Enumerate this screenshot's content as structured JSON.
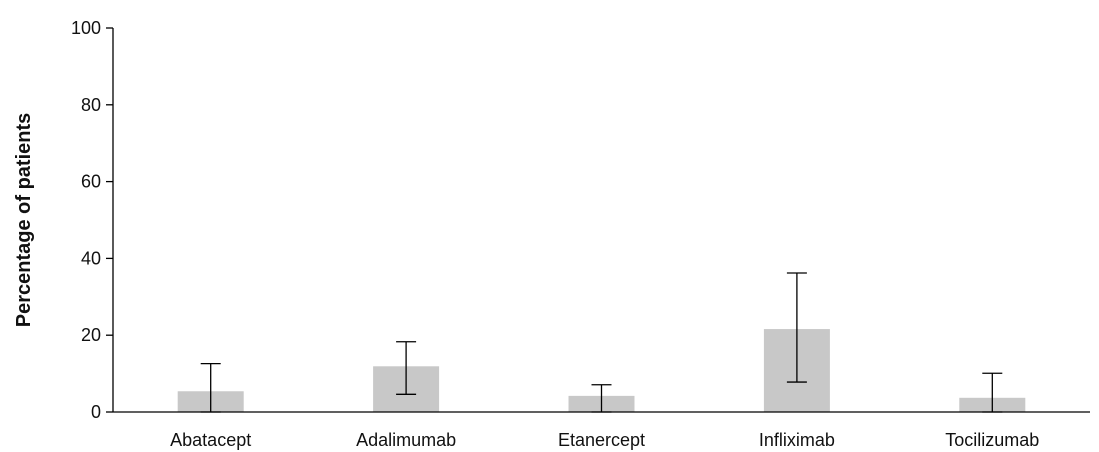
{
  "chart_data": {
    "type": "bar",
    "title": "",
    "xlabel": "",
    "ylabel": "Percentage of patients",
    "ylim": [
      0,
      100
    ],
    "yticks": [
      0,
      20,
      40,
      60,
      80,
      100
    ],
    "categories": [
      "Abatacept",
      "Adalimumab",
      "Etanercept",
      "Infliximab",
      "Tocilizumab"
    ],
    "values": [
      5.4,
      11.9,
      4.2,
      21.6,
      3.7
    ],
    "error_low": [
      0,
      4.6,
      0,
      7.8,
      0
    ],
    "error_high": [
      12.6,
      18.3,
      7.1,
      36.2,
      10.1
    ],
    "grid": false,
    "colors": {
      "bar": "#c8c8c8",
      "axis": "#000000",
      "error": "#000000"
    }
  }
}
